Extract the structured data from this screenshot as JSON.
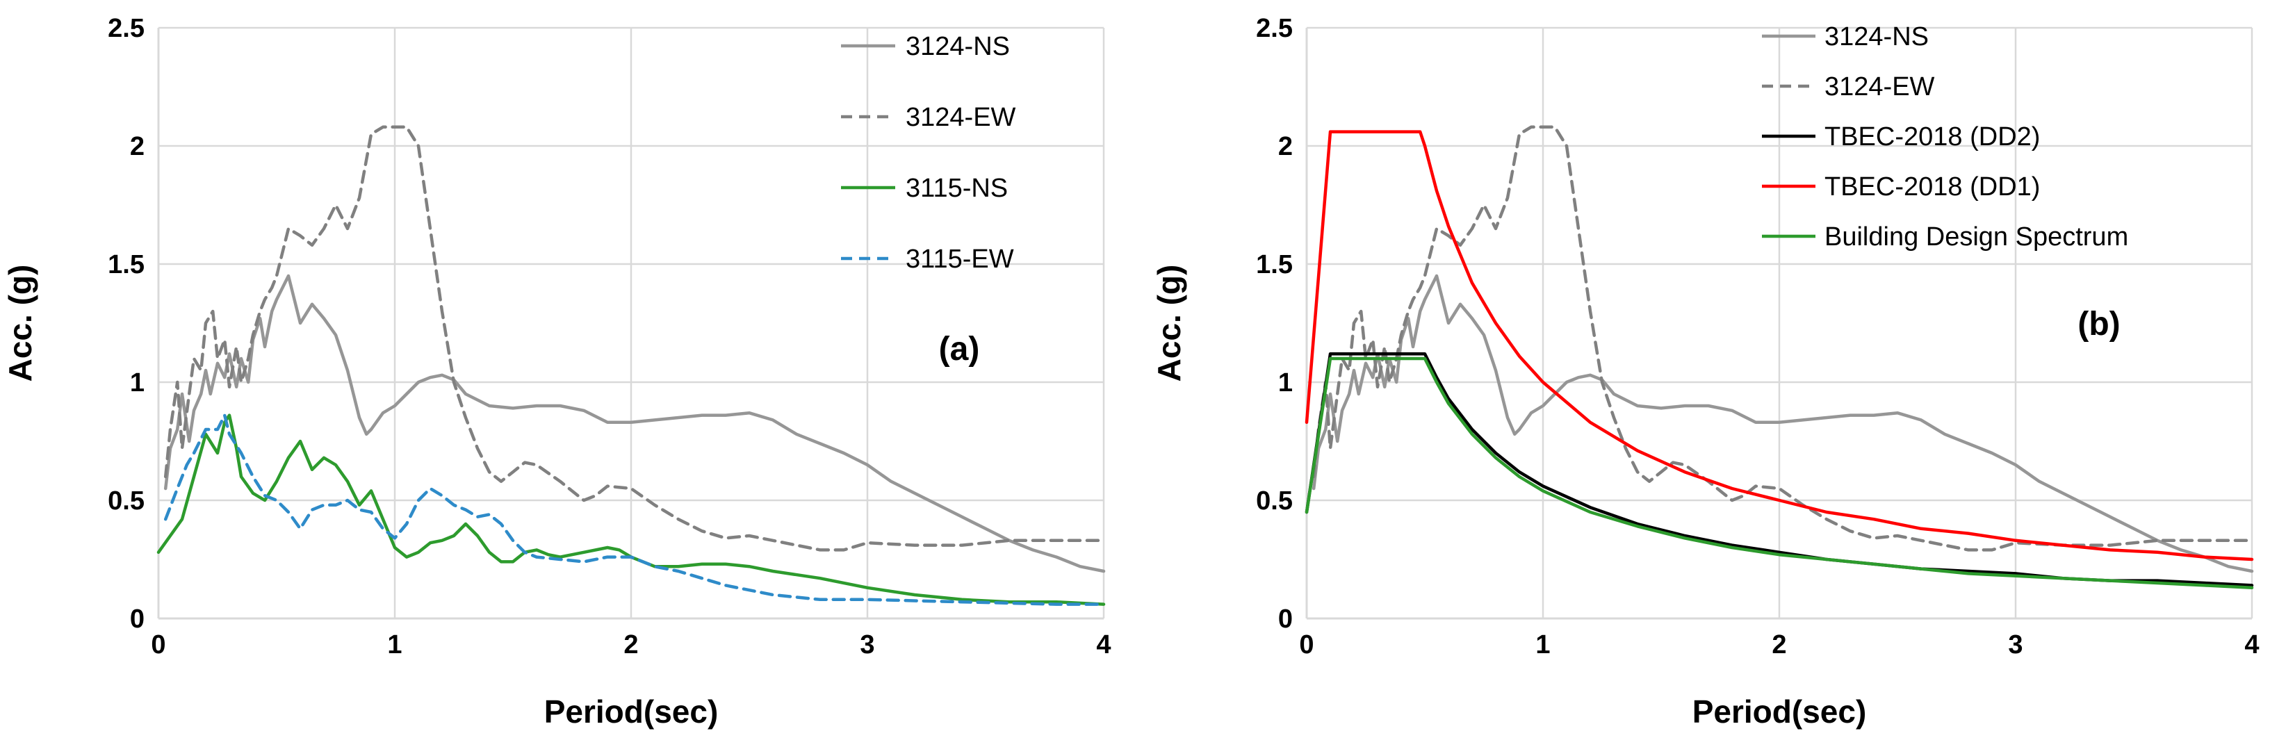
{
  "chart_data": [
    {
      "type": "line",
      "panel_label": "(a)",
      "xlabel": "Period(sec)",
      "ylabel": "Acc. (g)",
      "xlim": [
        0,
        4
      ],
      "ylim": [
        0,
        2.5
      ],
      "xticks": [
        "0",
        "1",
        "2",
        "3",
        "4"
      ],
      "yticks": [
        "0",
        "0.5",
        "1",
        "1.5",
        "2",
        "2.5"
      ],
      "grid": true,
      "legend_position": "top-right",
      "series": [
        {
          "name": "3124-NS",
          "color": "#969696",
          "dash": "solid",
          "x": [
            0.03,
            0.05,
            0.08,
            0.1,
            0.13,
            0.15,
            0.18,
            0.2,
            0.22,
            0.25,
            0.28,
            0.3,
            0.33,
            0.35,
            0.38,
            0.4,
            0.43,
            0.45,
            0.48,
            0.5,
            0.55,
            0.6,
            0.65,
            0.7,
            0.75,
            0.8,
            0.85,
            0.88,
            0.9,
            0.95,
            1.0,
            1.05,
            1.1,
            1.15,
            1.2,
            1.25,
            1.3,
            1.4,
            1.5,
            1.6,
            1.7,
            1.8,
            1.9,
            2.0,
            2.1,
            2.2,
            2.3,
            2.4,
            2.5,
            2.6,
            2.7,
            2.8,
            2.9,
            3.0,
            3.1,
            3.2,
            3.3,
            3.4,
            3.5,
            3.6,
            3.7,
            3.8,
            3.9,
            4.0
          ],
          "y": [
            0.55,
            0.72,
            0.8,
            0.95,
            0.75,
            0.88,
            0.95,
            1.05,
            0.95,
            1.08,
            1.02,
            1.12,
            0.98,
            1.1,
            1.0,
            1.18,
            1.27,
            1.15,
            1.3,
            1.35,
            1.45,
            1.25,
            1.33,
            1.27,
            1.2,
            1.05,
            0.85,
            0.78,
            0.8,
            0.87,
            0.9,
            0.95,
            1.0,
            1.02,
            1.03,
            1.01,
            0.95,
            0.9,
            0.89,
            0.9,
            0.9,
            0.88,
            0.83,
            0.83,
            0.84,
            0.85,
            0.86,
            0.86,
            0.87,
            0.84,
            0.78,
            0.74,
            0.7,
            0.65,
            0.58,
            0.53,
            0.48,
            0.43,
            0.38,
            0.33,
            0.29,
            0.26,
            0.22,
            0.2
          ]
        },
        {
          "name": "3124-EW",
          "color": "#808080",
          "dash": "dashed",
          "x": [
            0.03,
            0.05,
            0.08,
            0.1,
            0.13,
            0.15,
            0.18,
            0.2,
            0.23,
            0.25,
            0.28,
            0.3,
            0.33,
            0.35,
            0.38,
            0.4,
            0.43,
            0.45,
            0.48,
            0.5,
            0.55,
            0.6,
            0.65,
            0.7,
            0.75,
            0.8,
            0.85,
            0.9,
            0.95,
            1.0,
            1.05,
            1.1,
            1.15,
            1.2,
            1.25,
            1.3,
            1.35,
            1.4,
            1.45,
            1.5,
            1.55,
            1.6,
            1.7,
            1.8,
            1.85,
            1.9,
            2.0,
            2.1,
            2.2,
            2.3,
            2.4,
            2.5,
            2.6,
            2.7,
            2.8,
            2.9,
            3.0,
            3.2,
            3.4,
            3.6,
            3.8,
            4.0
          ],
          "y": [
            0.6,
            0.8,
            1.0,
            0.72,
            0.95,
            1.1,
            1.05,
            1.25,
            1.3,
            1.1,
            1.18,
            0.98,
            1.15,
            1.0,
            1.1,
            1.2,
            1.3,
            1.35,
            1.4,
            1.45,
            1.65,
            1.62,
            1.58,
            1.65,
            1.75,
            1.65,
            1.78,
            2.05,
            2.08,
            2.08,
            2.08,
            2.0,
            1.65,
            1.3,
            1.0,
            0.85,
            0.72,
            0.62,
            0.58,
            0.62,
            0.66,
            0.65,
            0.58,
            0.5,
            0.52,
            0.56,
            0.55,
            0.48,
            0.42,
            0.37,
            0.34,
            0.35,
            0.33,
            0.31,
            0.29,
            0.29,
            0.32,
            0.31,
            0.31,
            0.33,
            0.33,
            0.33
          ]
        },
        {
          "name": "3115-NS",
          "color": "#2d9b2d",
          "dash": "solid",
          "x": [
            0.0,
            0.05,
            0.1,
            0.15,
            0.2,
            0.25,
            0.28,
            0.3,
            0.33,
            0.35,
            0.4,
            0.45,
            0.5,
            0.55,
            0.6,
            0.65,
            0.7,
            0.75,
            0.8,
            0.85,
            0.9,
            0.95,
            1.0,
            1.05,
            1.1,
            1.15,
            1.2,
            1.25,
            1.3,
            1.35,
            1.4,
            1.45,
            1.5,
            1.55,
            1.6,
            1.65,
            1.7,
            1.8,
            1.9,
            1.95,
            2.0,
            2.1,
            2.2,
            2.3,
            2.4,
            2.5,
            2.6,
            2.8,
            3.0,
            3.2,
            3.4,
            3.6,
            3.8,
            4.0
          ],
          "y": [
            0.28,
            0.35,
            0.42,
            0.6,
            0.78,
            0.7,
            0.83,
            0.86,
            0.72,
            0.6,
            0.53,
            0.5,
            0.58,
            0.68,
            0.75,
            0.63,
            0.68,
            0.65,
            0.58,
            0.48,
            0.54,
            0.42,
            0.3,
            0.26,
            0.28,
            0.32,
            0.33,
            0.35,
            0.4,
            0.35,
            0.28,
            0.24,
            0.24,
            0.28,
            0.29,
            0.27,
            0.26,
            0.28,
            0.3,
            0.29,
            0.26,
            0.22,
            0.22,
            0.23,
            0.23,
            0.22,
            0.2,
            0.17,
            0.13,
            0.1,
            0.08,
            0.07,
            0.07,
            0.06
          ]
        },
        {
          "name": "3115-EW",
          "color": "#2e8bc9",
          "dash": "dashed",
          "x": [
            0.03,
            0.08,
            0.12,
            0.15,
            0.2,
            0.25,
            0.28,
            0.3,
            0.35,
            0.4,
            0.45,
            0.5,
            0.55,
            0.6,
            0.65,
            0.7,
            0.75,
            0.8,
            0.85,
            0.9,
            0.95,
            1.0,
            1.05,
            1.1,
            1.15,
            1.2,
            1.25,
            1.3,
            1.35,
            1.4,
            1.45,
            1.5,
            1.55,
            1.6,
            1.7,
            1.8,
            1.9,
            2.0,
            2.1,
            2.2,
            2.4,
            2.6,
            2.8,
            3.0,
            3.4,
            3.8,
            4.0
          ],
          "y": [
            0.42,
            0.55,
            0.65,
            0.7,
            0.8,
            0.8,
            0.86,
            0.78,
            0.7,
            0.6,
            0.52,
            0.5,
            0.45,
            0.38,
            0.46,
            0.48,
            0.48,
            0.5,
            0.46,
            0.45,
            0.38,
            0.34,
            0.4,
            0.5,
            0.55,
            0.52,
            0.48,
            0.46,
            0.43,
            0.44,
            0.4,
            0.33,
            0.28,
            0.26,
            0.25,
            0.24,
            0.26,
            0.26,
            0.22,
            0.2,
            0.14,
            0.1,
            0.08,
            0.08,
            0.07,
            0.06,
            0.06
          ]
        }
      ]
    },
    {
      "type": "line",
      "panel_label": "(b)",
      "xlabel": "Period(sec)",
      "ylabel": "Acc. (g)",
      "xlim": [
        0,
        4
      ],
      "ylim": [
        0,
        2.5
      ],
      "xticks": [
        "0",
        "1",
        "2",
        "3",
        "4"
      ],
      "yticks": [
        "0",
        "0.5",
        "1",
        "1.5",
        "2",
        "2.5"
      ],
      "grid": true,
      "legend_position": "top-right",
      "series": [
        {
          "name": "3124-NS",
          "color": "#969696",
          "dash": "solid",
          "x": [
            0.03,
            0.05,
            0.08,
            0.1,
            0.13,
            0.15,
            0.18,
            0.2,
            0.22,
            0.25,
            0.28,
            0.3,
            0.33,
            0.35,
            0.38,
            0.4,
            0.43,
            0.45,
            0.48,
            0.5,
            0.55,
            0.6,
            0.65,
            0.7,
            0.75,
            0.8,
            0.85,
            0.88,
            0.9,
            0.95,
            1.0,
            1.05,
            1.1,
            1.15,
            1.2,
            1.25,
            1.3,
            1.4,
            1.5,
            1.6,
            1.7,
            1.8,
            1.9,
            2.0,
            2.1,
            2.2,
            2.3,
            2.4,
            2.5,
            2.6,
            2.7,
            2.8,
            2.9,
            3.0,
            3.1,
            3.2,
            3.3,
            3.4,
            3.5,
            3.6,
            3.7,
            3.8,
            3.9,
            4.0
          ],
          "y": [
            0.55,
            0.72,
            0.8,
            0.95,
            0.75,
            0.88,
            0.95,
            1.05,
            0.95,
            1.08,
            1.02,
            1.12,
            0.98,
            1.1,
            1.0,
            1.18,
            1.27,
            1.15,
            1.3,
            1.35,
            1.45,
            1.25,
            1.33,
            1.27,
            1.2,
            1.05,
            0.85,
            0.78,
            0.8,
            0.87,
            0.9,
            0.95,
            1.0,
            1.02,
            1.03,
            1.01,
            0.95,
            0.9,
            0.89,
            0.9,
            0.9,
            0.88,
            0.83,
            0.83,
            0.84,
            0.85,
            0.86,
            0.86,
            0.87,
            0.84,
            0.78,
            0.74,
            0.7,
            0.65,
            0.58,
            0.53,
            0.48,
            0.43,
            0.38,
            0.33,
            0.29,
            0.26,
            0.22,
            0.2
          ]
        },
        {
          "name": "3124-EW",
          "color": "#808080",
          "dash": "dashed",
          "x": [
            0.03,
            0.05,
            0.08,
            0.1,
            0.13,
            0.15,
            0.18,
            0.2,
            0.23,
            0.25,
            0.28,
            0.3,
            0.33,
            0.35,
            0.38,
            0.4,
            0.43,
            0.45,
            0.48,
            0.5,
            0.55,
            0.6,
            0.65,
            0.7,
            0.75,
            0.8,
            0.85,
            0.9,
            0.95,
            1.0,
            1.05,
            1.1,
            1.15,
            1.2,
            1.25,
            1.3,
            1.35,
            1.4,
            1.45,
            1.5,
            1.55,
            1.6,
            1.7,
            1.8,
            1.85,
            1.9,
            2.0,
            2.1,
            2.2,
            2.3,
            2.4,
            2.5,
            2.6,
            2.7,
            2.8,
            2.9,
            3.0,
            3.2,
            3.4,
            3.6,
            3.8,
            4.0
          ],
          "y": [
            0.6,
            0.8,
            1.0,
            0.72,
            0.95,
            1.1,
            1.05,
            1.25,
            1.3,
            1.1,
            1.18,
            0.98,
            1.15,
            1.0,
            1.1,
            1.2,
            1.3,
            1.35,
            1.4,
            1.45,
            1.65,
            1.62,
            1.58,
            1.65,
            1.75,
            1.65,
            1.78,
            2.05,
            2.08,
            2.08,
            2.08,
            2.0,
            1.65,
            1.3,
            1.0,
            0.85,
            0.72,
            0.62,
            0.58,
            0.62,
            0.66,
            0.65,
            0.58,
            0.5,
            0.52,
            0.56,
            0.55,
            0.48,
            0.42,
            0.37,
            0.34,
            0.35,
            0.33,
            0.31,
            0.29,
            0.29,
            0.32,
            0.31,
            0.31,
            0.33,
            0.33,
            0.33
          ]
        },
        {
          "name": "TBEC-2018 (DD2)",
          "color": "#000000",
          "dash": "solid",
          "x": [
            0.0,
            0.1,
            0.15,
            0.2,
            0.3,
            0.4,
            0.5,
            0.55,
            0.6,
            0.7,
            0.8,
            0.9,
            1.0,
            1.2,
            1.4,
            1.6,
            1.8,
            2.0,
            2.2,
            2.4,
            2.6,
            2.8,
            3.0,
            3.2,
            3.4,
            3.6,
            3.8,
            4.0
          ],
          "y": [
            0.45,
            1.12,
            1.12,
            1.12,
            1.12,
            1.12,
            1.12,
            1.02,
            0.93,
            0.8,
            0.7,
            0.62,
            0.56,
            0.47,
            0.4,
            0.35,
            0.31,
            0.28,
            0.25,
            0.23,
            0.21,
            0.2,
            0.19,
            0.17,
            0.16,
            0.16,
            0.15,
            0.14
          ]
        },
        {
          "name": "TBEC-2018 (DD1)",
          "color": "#ff0000",
          "dash": "solid",
          "x": [
            0.0,
            0.1,
            0.15,
            0.2,
            0.3,
            0.4,
            0.48,
            0.5,
            0.55,
            0.6,
            0.7,
            0.8,
            0.9,
            1.0,
            1.2,
            1.4,
            1.6,
            1.8,
            2.0,
            2.2,
            2.4,
            2.6,
            2.8,
            3.0,
            3.2,
            3.4,
            3.6,
            3.8,
            4.0
          ],
          "y": [
            0.83,
            2.06,
            2.06,
            2.06,
            2.06,
            2.06,
            2.06,
            2.0,
            1.81,
            1.66,
            1.42,
            1.25,
            1.11,
            1.0,
            0.83,
            0.71,
            0.62,
            0.55,
            0.5,
            0.45,
            0.42,
            0.38,
            0.36,
            0.33,
            0.31,
            0.29,
            0.28,
            0.26,
            0.25
          ]
        },
        {
          "name": "Building Design Spectrum",
          "color": "#2d9b2d",
          "dash": "solid",
          "x": [
            0.0,
            0.1,
            0.15,
            0.2,
            0.3,
            0.4,
            0.5,
            0.55,
            0.6,
            0.7,
            0.8,
            0.9,
            1.0,
            1.2,
            1.4,
            1.6,
            1.8,
            2.0,
            2.2,
            2.4,
            2.6,
            2.8,
            3.0,
            3.2,
            3.4,
            3.6,
            3.8,
            4.0
          ],
          "y": [
            0.45,
            1.1,
            1.1,
            1.1,
            1.1,
            1.1,
            1.1,
            1.0,
            0.91,
            0.78,
            0.68,
            0.6,
            0.54,
            0.45,
            0.39,
            0.34,
            0.3,
            0.27,
            0.25,
            0.23,
            0.21,
            0.19,
            0.18,
            0.17,
            0.16,
            0.15,
            0.14,
            0.13
          ]
        }
      ]
    }
  ]
}
